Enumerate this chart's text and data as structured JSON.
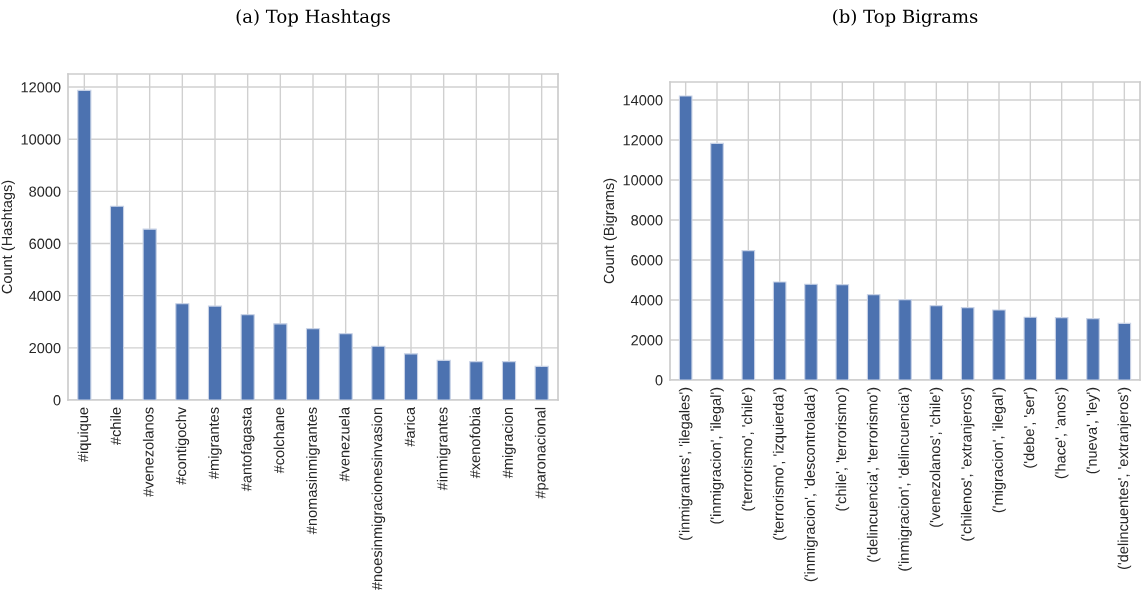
{
  "chart_data": [
    {
      "type": "bar",
      "title": "(a) Top Hashtags",
      "ylabel": "Count (Hashtags)",
      "categories": [
        "#iquique",
        "#chile",
        "#venezolanos",
        "#contigochv",
        "#migrantes",
        "#antofagasta",
        "#colchane",
        "#nomasinmigrantes",
        "#venezuela",
        "#noesinmigracionesinvasion",
        "#arica",
        "#inmigrantes",
        "#xenofobia",
        "#migracion",
        "#paronacional"
      ],
      "values": [
        11870,
        7430,
        6550,
        3690,
        3600,
        3270,
        2920,
        2730,
        2540,
        2060,
        1770,
        1520,
        1470,
        1470,
        1290
      ],
      "color": "#4c72b0",
      "ylim": [
        0,
        12500
      ],
      "yticks": [
        0,
        2000,
        4000,
        6000,
        8000,
        10000,
        12000
      ],
      "grid": true,
      "legend": false
    },
    {
      "type": "bar",
      "title": "(b) Top Bigrams",
      "ylabel": "Count (Bigrams)",
      "categories": [
        "('inmigrantes', 'ilegales')",
        "('inmigracion', 'ilegal')",
        "('terrorismo', 'chile')",
        "('terrorismo', 'izquierda')",
        "('inmigracion', 'descontrolada')",
        "('chile', 'terrorismo')",
        "('delincuencia', 'terrorismo')",
        "('inmigracion', 'delincuencia')",
        "('venezolanos', 'chile')",
        "('chilenos', 'extranjeros')",
        "('migracion', 'ilegal')",
        "('debe', 'ser')",
        "('hace', 'anos')",
        "('nueva', 'ley')",
        "('delincuentes', 'extranjeros')"
      ],
      "values": [
        14200,
        11830,
        6470,
        4900,
        4790,
        4760,
        4260,
        4020,
        3710,
        3620,
        3500,
        3140,
        3120,
        3070,
        2830
      ],
      "color": "#4c72b0",
      "ylim": [
        0,
        14900
      ],
      "yticks": [
        0,
        2000,
        4000,
        6000,
        8000,
        10000,
        12000,
        14000
      ],
      "grid": true,
      "legend": false
    }
  ]
}
